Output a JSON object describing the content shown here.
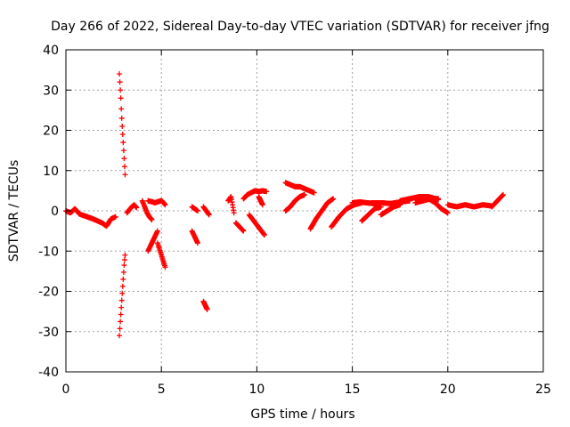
{
  "chart_data": {
    "type": "scatter",
    "title": "Day 266 of 2022, Sidereal Day-to-day VTEC variation (SDTVAR) for receiver jfng",
    "xlabel": "GPS time / hours",
    "ylabel": "SDTVAR / TECUs",
    "xlim": [
      0,
      25
    ],
    "ylim": [
      -40,
      40
    ],
    "xticks": [
      0,
      5,
      10,
      15,
      20,
      25
    ],
    "yticks": [
      -40,
      -30,
      -20,
      -10,
      0,
      10,
      20,
      30,
      40
    ],
    "grid": true,
    "marker": "+",
    "color": "#ff0000",
    "series": [
      {
        "name": "SDTVAR",
        "segments": [
          {
            "x0": 0.0,
            "x1": 2.6,
            "y": [
              0.0,
              -0.5,
              0.5,
              -0.8,
              -1.2,
              -1.6,
              -2.0,
              -2.5,
              -3.0,
              -3.8,
              -2.0,
              -1.5
            ]
          },
          {
            "x0": 2.8,
            "x1": 3.1,
            "y": [
              34,
              31,
              28,
              24,
              21,
              18,
              15,
              12,
              9
            ]
          },
          {
            "x0": 2.8,
            "x1": 3.1,
            "y": [
              -31,
              -28,
              -25,
              -22,
              -19,
              -16,
              -13,
              -11
            ]
          },
          {
            "x0": 3.2,
            "x1": 3.7,
            "y": [
              -0.5,
              0.3,
              1.0,
              1.5,
              0.8
            ]
          },
          {
            "x0": 4.0,
            "x1": 4.5,
            "y": [
              2.5,
              1.0,
              -0.5,
              -1.5,
              -2.2
            ]
          },
          {
            "x0": 4.3,
            "x1": 5.2,
            "y": [
              2.5,
              2.3,
              2.0,
              2.3,
              2.5,
              1.5
            ]
          },
          {
            "x0": 4.3,
            "x1": 4.8,
            "y": [
              -10,
              -9,
              -8,
              -7,
              -6,
              -5
            ]
          },
          {
            "x0": 4.8,
            "x1": 5.2,
            "y": [
              -8,
              -10,
              -12,
              -14
            ]
          },
          {
            "x0": 6.6,
            "x1": 6.9,
            "y": [
              -5,
              -6,
              -7,
              -8
            ]
          },
          {
            "x0": 6.6,
            "x1": 6.9,
            "y": [
              1.0,
              0.5,
              0.0
            ]
          },
          {
            "x0": 7.2,
            "x1": 7.4,
            "y": [
              -22.5,
              -23.5,
              -24.5
            ]
          },
          {
            "x0": 7.2,
            "x1": 7.5,
            "y": [
              1.0,
              0.0,
              -1.0
            ]
          },
          {
            "x0": 8.5,
            "x1": 8.8,
            "y": [
              2.5,
              3.5,
              -0.5
            ]
          },
          {
            "x0": 8.9,
            "x1": 9.3,
            "y": [
              -3,
              -4,
              -5
            ]
          },
          {
            "x0": 9.3,
            "x1": 10.5,
            "y": [
              3.0,
              4.0,
              4.5,
              5.0,
              4.8,
              5.0,
              4.8
            ]
          },
          {
            "x0": 9.6,
            "x1": 10.4,
            "y": [
              -1,
              -2,
              -3,
              -4,
              -5,
              -6
            ]
          },
          {
            "x0": 10.1,
            "x1": 10.3,
            "y": [
              3.5,
              2.5,
              1.5
            ]
          },
          {
            "x0": 11.5,
            "x1": 13.0,
            "y": [
              7.0,
              6.5,
              6.0,
              6.0,
              5.5,
              5.0,
              4.5
            ]
          },
          {
            "x0": 11.5,
            "x1": 12.5,
            "y": [
              0.0,
              1.0,
              2.5,
              3.5,
              4.0
            ]
          },
          {
            "x0": 12.8,
            "x1": 14.0,
            "y": [
              -4.5,
              -2.0,
              0.0,
              2.0,
              3.0
            ]
          },
          {
            "x0": 13.9,
            "x1": 15.5,
            "y": [
              -4.0,
              -1.5,
              0.5,
              1.5,
              2.0
            ]
          },
          {
            "x0": 15.0,
            "x1": 16.5,
            "y": [
              2.0,
              2.2,
              2.0,
              1.8,
              1.5
            ]
          },
          {
            "x0": 15.5,
            "x1": 16.5,
            "y": [
              -2.5,
              -1.0,
              0.5,
              1.0
            ]
          },
          {
            "x0": 16.0,
            "x1": 18.0,
            "y": [
              2.0,
              2.0,
              1.8,
              2.2,
              2.5
            ]
          },
          {
            "x0": 16.5,
            "x1": 17.5,
            "y": [
              -1.0,
              0.0,
              1.0,
              1.5
            ]
          },
          {
            "x0": 17.5,
            "x1": 19.5,
            "y": [
              2.5,
              3.0,
              3.5,
              3.5,
              2.8
            ]
          },
          {
            "x0": 18.3,
            "x1": 19.5,
            "y": [
              2.0,
              2.5,
              3.0,
              3.0
            ]
          },
          {
            "x0": 19.0,
            "x1": 20.0,
            "y": [
              3.0,
              2.0,
              0.5,
              -0.5
            ]
          },
          {
            "x0": 20.0,
            "x1": 22.3,
            "y": [
              1.5,
              1.0,
              1.5,
              1.0,
              1.5,
              1.2
            ]
          },
          {
            "x0": 22.3,
            "x1": 22.9,
            "y": [
              1.0,
              2.5,
              4.0
            ]
          }
        ]
      }
    ]
  }
}
